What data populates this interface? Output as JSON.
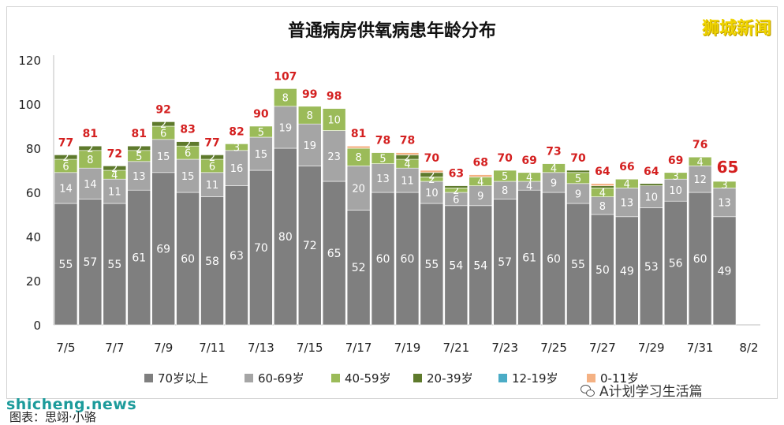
{
  "watermarks": {
    "brand": "狮城新闻",
    "site": "shicheng.news",
    "source": "图表：思翊·小骆",
    "wechat": "A计划学习生活篇"
  },
  "chart_data": {
    "type": "bar",
    "stacked": true,
    "title": "普通病房供氧病患年龄分布",
    "xlabel": "",
    "ylabel": "",
    "ylim": [
      0,
      120
    ],
    "yticks": [
      0,
      20,
      40,
      60,
      80,
      100,
      120
    ],
    "grid": false,
    "legend_position": "bottom",
    "categories": [
      "7/5",
      "7/6",
      "7/7",
      "7/8",
      "7/9",
      "7/10",
      "7/11",
      "7/12",
      "7/13",
      "7/14",
      "7/15",
      "7/16",
      "7/17",
      "7/18",
      "7/19",
      "7/20",
      "7/21",
      "7/22",
      "7/23",
      "7/24",
      "7/25",
      "7/26",
      "7/27",
      "7/28",
      "7/29",
      "7/30",
      "7/31",
      "8/1"
    ],
    "x_tick_labels": [
      "7/5",
      "7/7",
      "7/9",
      "7/11",
      "7/13",
      "7/15",
      "7/17",
      "7/19",
      "7/21",
      "7/23",
      "7/25",
      "7/27",
      "7/29",
      "7/31",
      "8/2"
    ],
    "totals": [
      77,
      81,
      72,
      81,
      92,
      83,
      77,
      82,
      90,
      107,
      99,
      98,
      81,
      78,
      78,
      70,
      63,
      68,
      70,
      69,
      73,
      70,
      64,
      66,
      64,
      69,
      76,
      65
    ],
    "total_colors": {
      "normal": "#d42020",
      "last": "#d42020"
    },
    "series": [
      {
        "name": "70岁以上",
        "color": "#7f7f7f",
        "values": [
          55,
          57,
          55,
          61,
          69,
          60,
          58,
          63,
          70,
          80,
          72,
          65,
          52,
          60,
          60,
          55,
          54,
          54,
          57,
          61,
          60,
          55,
          50,
          49,
          53,
          56,
          60,
          49
        ],
        "labels": [
          "55",
          "57",
          "55",
          "61",
          "69",
          "60",
          "58",
          "63",
          "70",
          "80",
          "72",
          "65",
          "52",
          "60",
          "60",
          "55",
          "54",
          "54",
          "57",
          "61",
          "60",
          "55",
          "50",
          "49",
          "53",
          "56",
          "60",
          "49"
        ]
      },
      {
        "name": "60-69岁",
        "color": "#a5a5a5",
        "values": [
          14,
          14,
          11,
          13,
          15,
          15,
          11,
          16,
          15,
          19,
          19,
          23,
          20,
          13,
          11,
          10,
          6,
          9,
          8,
          4,
          9,
          9,
          8,
          13,
          10,
          10,
          12,
          13
        ],
        "labels": [
          "14",
          "14",
          "11",
          "13",
          "15",
          "15",
          "11",
          "16",
          "15",
          "19",
          "19",
          "23",
          "20",
          "13",
          "11",
          "10",
          "6",
          "9",
          "8",
          "4",
          "9",
          "9",
          "8",
          "13",
          "10",
          "10",
          "12",
          "13"
        ]
      },
      {
        "name": "40-59岁",
        "color": "#9bbb59",
        "values": [
          6,
          8,
          4,
          5,
          6,
          6,
          6,
          3,
          5,
          8,
          8,
          10,
          8,
          5,
          4,
          2,
          2,
          4,
          5,
          4,
          4,
          5,
          4,
          4,
          0,
          3,
          4,
          3
        ],
        "labels": [
          "6",
          "8",
          "4",
          "5",
          "6",
          "6",
          "6",
          "3",
          "5",
          "8",
          "8",
          "10",
          "8",
          "5",
          "4",
          "2",
          "2",
          "4",
          "5",
          "4",
          "4",
          "5",
          "4",
          "4",
          "",
          "3",
          "4",
          "3"
        ]
      },
      {
        "name": "20-39岁",
        "color": "#5e7a2c",
        "values": [
          2,
          2,
          2,
          2,
          2,
          2,
          2,
          0,
          0,
          0,
          0,
          0,
          0,
          0,
          2,
          2,
          1,
          0,
          0,
          0,
          0,
          1,
          1,
          0,
          1,
          0,
          0,
          0
        ],
        "labels": [
          "2",
          "2",
          "2",
          "2",
          "2",
          "2",
          "2",
          "",
          "",
          "",
          "",
          "",
          "",
          "",
          "2",
          "2",
          "",
          "",
          "",
          "",
          "",
          "",
          "",
          "",
          "",
          "",
          "",
          ""
        ]
      },
      {
        "name": "12-19岁",
        "color": "#4bacc6",
        "values": [
          0,
          0,
          0,
          0,
          0,
          0,
          0,
          0,
          0,
          0,
          0,
          0,
          0,
          0,
          0,
          0,
          0,
          0,
          0,
          0,
          0,
          0,
          0,
          0,
          0,
          0,
          0,
          0
        ],
        "labels": [
          "",
          "",
          "",
          "",
          "",
          "",
          "",
          "",
          "",
          "",
          "",
          "",
          "",
          "",
          "",
          "",
          "",
          "",
          "",
          "",
          "",
          "",
          "",
          "",
          "",
          "",
          "",
          ""
        ]
      },
      {
        "name": "0-11岁",
        "color": "#f4b183",
        "values": [
          0,
          0,
          0,
          0,
          0,
          0,
          0,
          0,
          0,
          0,
          0,
          0,
          1,
          0,
          1,
          1,
          0,
          1,
          0,
          0,
          0,
          0,
          1,
          0,
          0,
          0,
          0,
          0
        ],
        "labels": [
          "",
          "",
          "",
          "",
          "",
          "",
          "",
          "",
          "",
          "",
          "",
          "",
          "",
          "",
          "",
          "",
          "",
          "",
          "",
          "",
          "",
          "",
          "",
          "",
          "",
          "",
          "",
          ""
        ]
      }
    ]
  }
}
